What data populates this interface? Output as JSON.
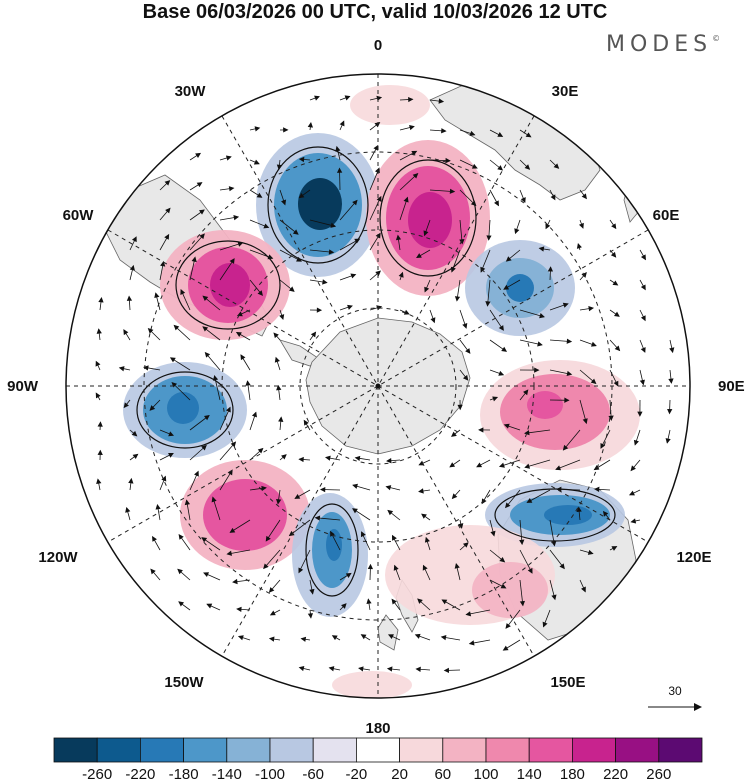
{
  "title": "Base 06/03/2026 00 UTC, valid 10/03/2026 12 UTC",
  "brand": {
    "name": "MODES",
    "mark": "©"
  },
  "longitude_labels": {
    "n0": "0",
    "e30": "30E",
    "e60": "60E",
    "e90": "90E",
    "e120": "120E",
    "e150": "150E",
    "s180": "180",
    "w150": "150W",
    "w120": "120W",
    "w90": "90W",
    "w60": "60W",
    "w30": "30W"
  },
  "vector_scale": {
    "label": "30"
  },
  "colorbar": {
    "colors": [
      "#073a5c",
      "#0d5a8e",
      "#2779b6",
      "#4d97c9",
      "#86b2d6",
      "#b8c8e2",
      "#e4e2ef",
      "#ffffff",
      "#f7d9dc",
      "#f3b3c3",
      "#ef88ad",
      "#e556a0",
      "#c8238e",
      "#981083",
      "#5c0a72"
    ],
    "labels": [
      "-260",
      "-220",
      "-180",
      "-140",
      "-100",
      "-60",
      "-20",
      "20",
      "60",
      "100",
      "140",
      "180",
      "220",
      "260"
    ]
  },
  "anomaly_centers": [
    {
      "sign": "negative",
      "value": -240,
      "lon": -15
    },
    {
      "sign": "positive",
      "value": 200,
      "lon": 20
    },
    {
      "sign": "positive",
      "value": 200,
      "lon": -50
    },
    {
      "sign": "negative",
      "value": -160,
      "lon": 55
    },
    {
      "sign": "negative",
      "value": -180,
      "lon": -95
    },
    {
      "sign": "positive",
      "value": 150,
      "lon": 95
    },
    {
      "sign": "positive",
      "value": 160,
      "lon": -130
    },
    {
      "sign": "negative",
      "value": -170,
      "lon": -155
    },
    {
      "sign": "negative",
      "value": -180,
      "lon": 125
    },
    {
      "sign": "positive",
      "value": 80,
      "lon": 150
    }
  ]
}
